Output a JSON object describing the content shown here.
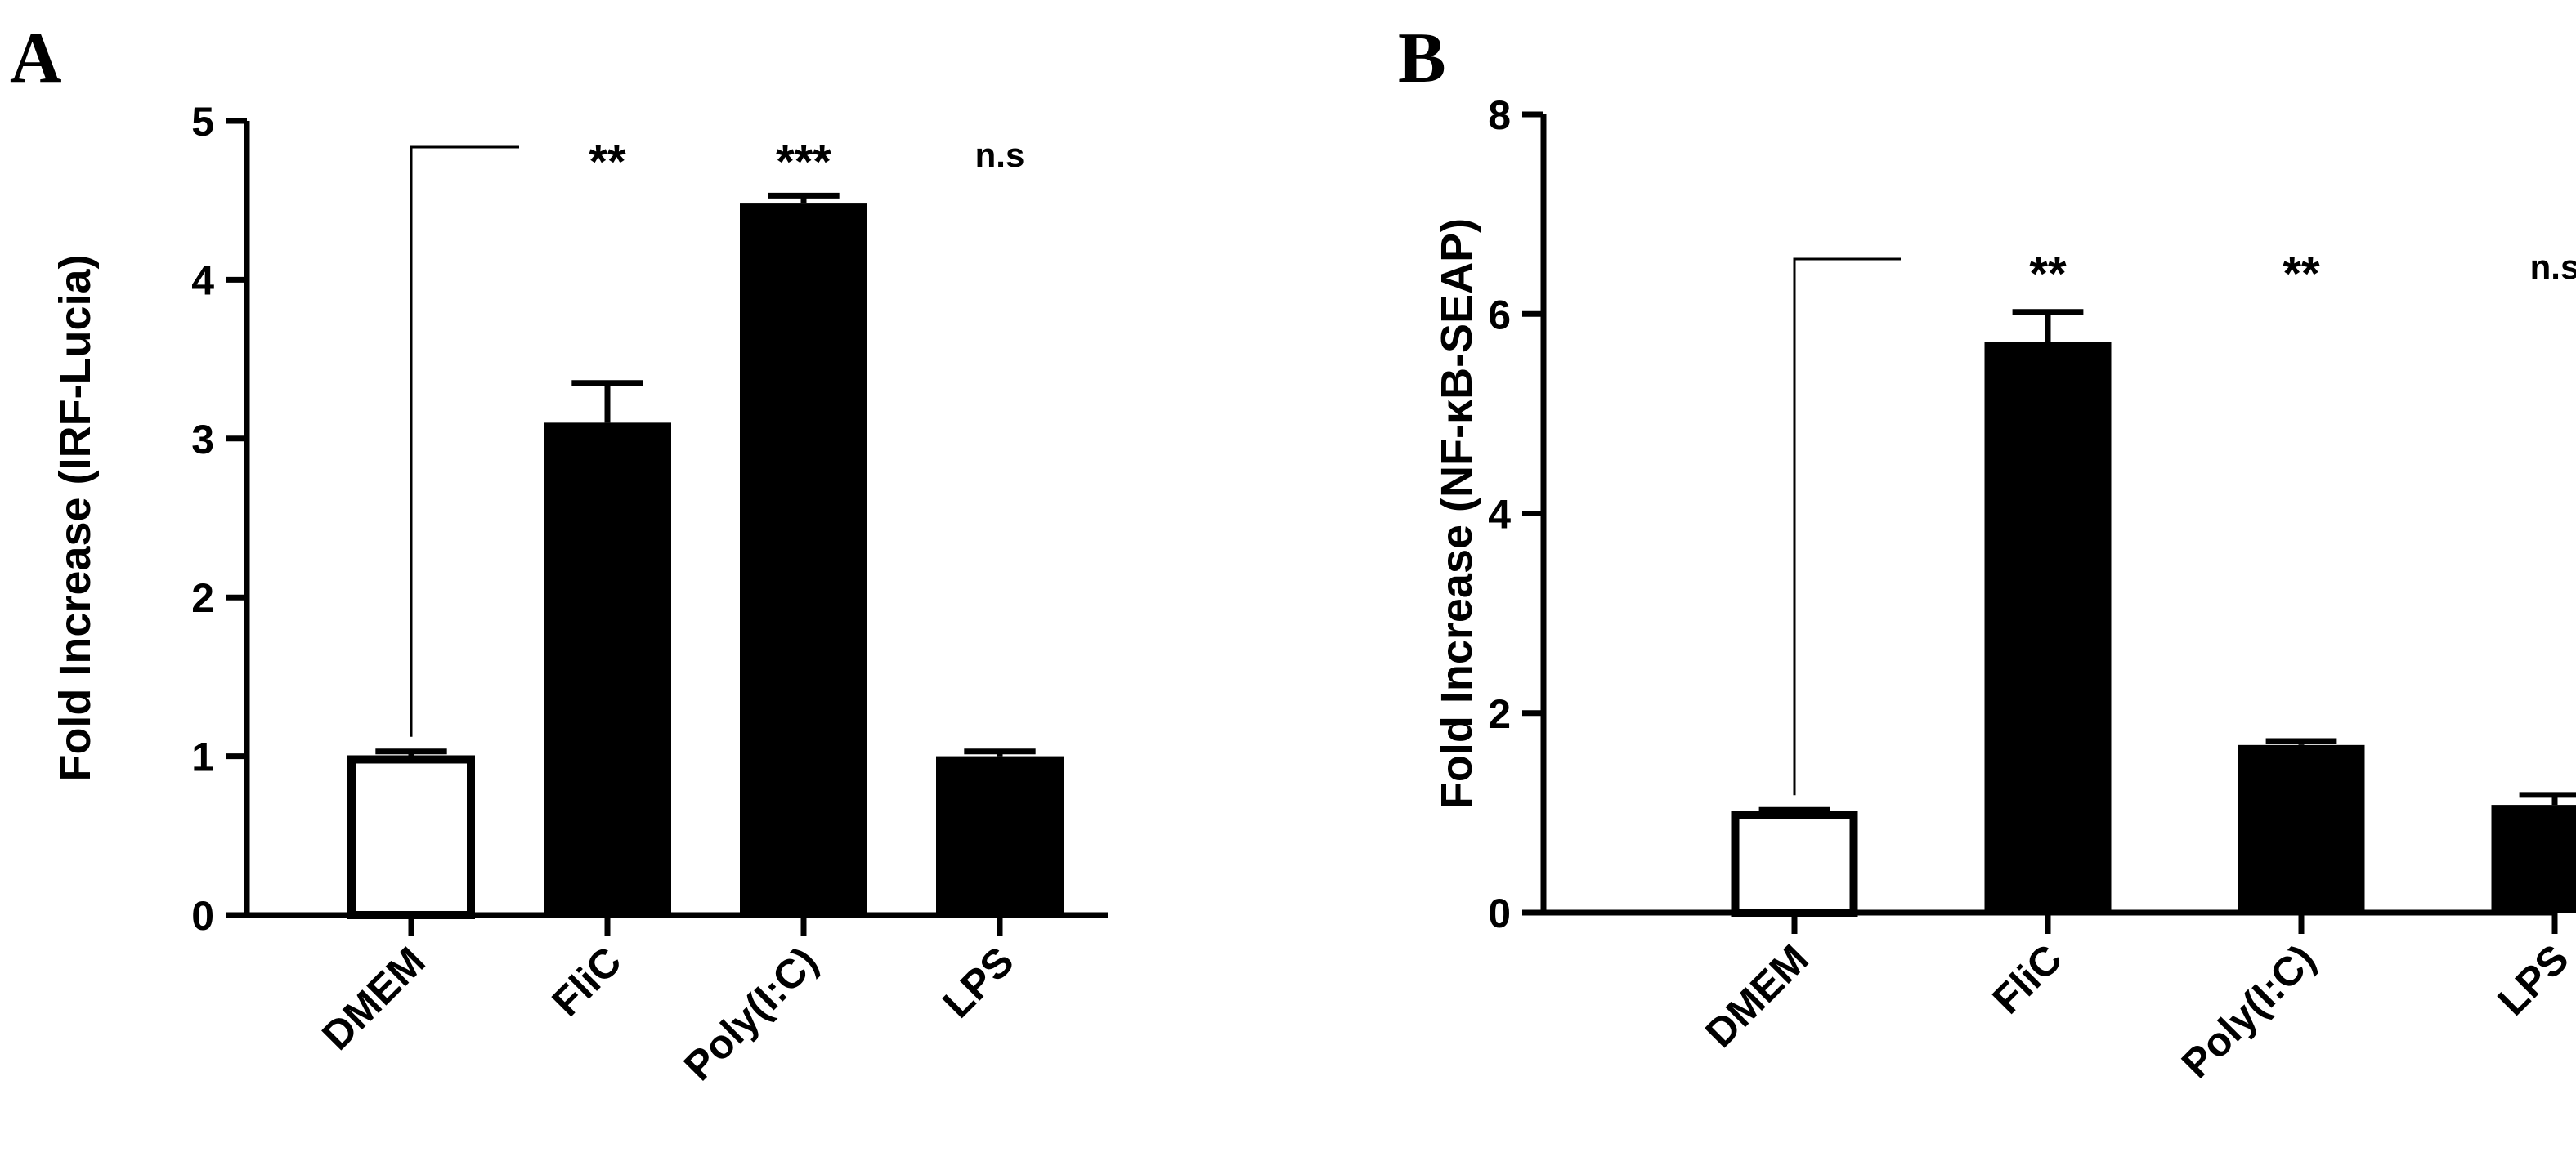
{
  "figure": {
    "colors": {
      "bar_fill": "#000000",
      "open_bar_fill": "#ffffff",
      "axis": "#000000"
    }
  },
  "chart_data": [
    {
      "panel_label": "A",
      "type": "bar",
      "ylabel": "Fold Increase (IRF-Lucia)",
      "ylim": [
        0,
        5
      ],
      "yticks": [
        0,
        1,
        2,
        3,
        4,
        5
      ],
      "categories": [
        "DMEM",
        "FliC",
        "Poly(I:C)",
        "LPS"
      ],
      "values": [
        0.98,
        3.1,
        4.48,
        1.0
      ],
      "errors": [
        0.05,
        0.25,
        0.05,
        0.03
      ],
      "bar_style": [
        "open",
        "filled",
        "filled",
        "filled"
      ],
      "significance": [
        "",
        "**",
        "***",
        "n.s"
      ],
      "comparison_bracket": "from DMEM to FliC",
      "grid": false
    },
    {
      "panel_label": "B",
      "type": "bar",
      "ylabel": "Fold Increase (NF-κB-SEAP)",
      "ylim": [
        0,
        8
      ],
      "yticks": [
        0,
        2,
        4,
        6,
        8
      ],
      "categories": [
        "DMEM",
        "FliC",
        "Poly(I:C)",
        "LPS"
      ],
      "values": [
        0.98,
        5.72,
        1.68,
        1.08
      ],
      "errors": [
        0.05,
        0.3,
        0.04,
        0.1
      ],
      "bar_style": [
        "open",
        "filled",
        "filled",
        "filled"
      ],
      "significance": [
        "",
        "**",
        "**",
        "n.s"
      ],
      "comparison_bracket": "from DMEM to FliC",
      "grid": false
    }
  ]
}
